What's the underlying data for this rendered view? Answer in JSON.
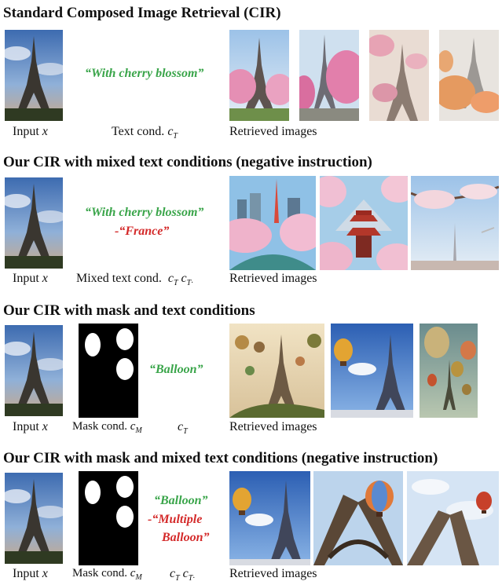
{
  "sections": [
    {
      "title": "Standard Composed Image Retrieval (CIR)",
      "input_label": "Input",
      "input_var": "x",
      "text_cond_label": "Text cond.",
      "text_cond_var": "c",
      "text_cond_sub": "T",
      "quote_positive": "“With cherry blossom”",
      "retrieved_label": "Retrieved images"
    },
    {
      "title": "Our CIR with mixed text conditions (negative instruction)",
      "input_label": "Input",
      "input_var": "x",
      "mixed_label": "Mixed text cond.",
      "var1": "c",
      "sub1": "T",
      "var2": "c",
      "sub2": "T·",
      "quote_positive": "“With cherry blossom”",
      "quote_negative": "-“France”",
      "retrieved_label": "Retrieved images"
    },
    {
      "title": "Our CIR with mask and text conditions",
      "input_label": "Input",
      "input_var": "x",
      "mask_label": "Mask cond.",
      "mask_var": "c",
      "mask_sub": "M",
      "text_var": "c",
      "text_sub": "T",
      "quote_positive": "“Balloon”",
      "retrieved_label": "Retrieved images"
    },
    {
      "title": "Our CIR with mask and mixed text conditions (negative instruction)",
      "input_label": "Input",
      "input_var": "x",
      "mask_label": "Mask cond.",
      "mask_var": "c",
      "mask_sub": "M",
      "var1": "c",
      "sub1": "T",
      "var2": "c",
      "sub2": "T·",
      "quote_positive": "“Balloon”",
      "quote_negative_1": "-“Multiple",
      "quote_negative_2": "Balloon”",
      "retrieved_label": "Retrieved images"
    }
  ],
  "colors": {
    "positive": "#3aa54a",
    "negative": "#d42a2a"
  }
}
